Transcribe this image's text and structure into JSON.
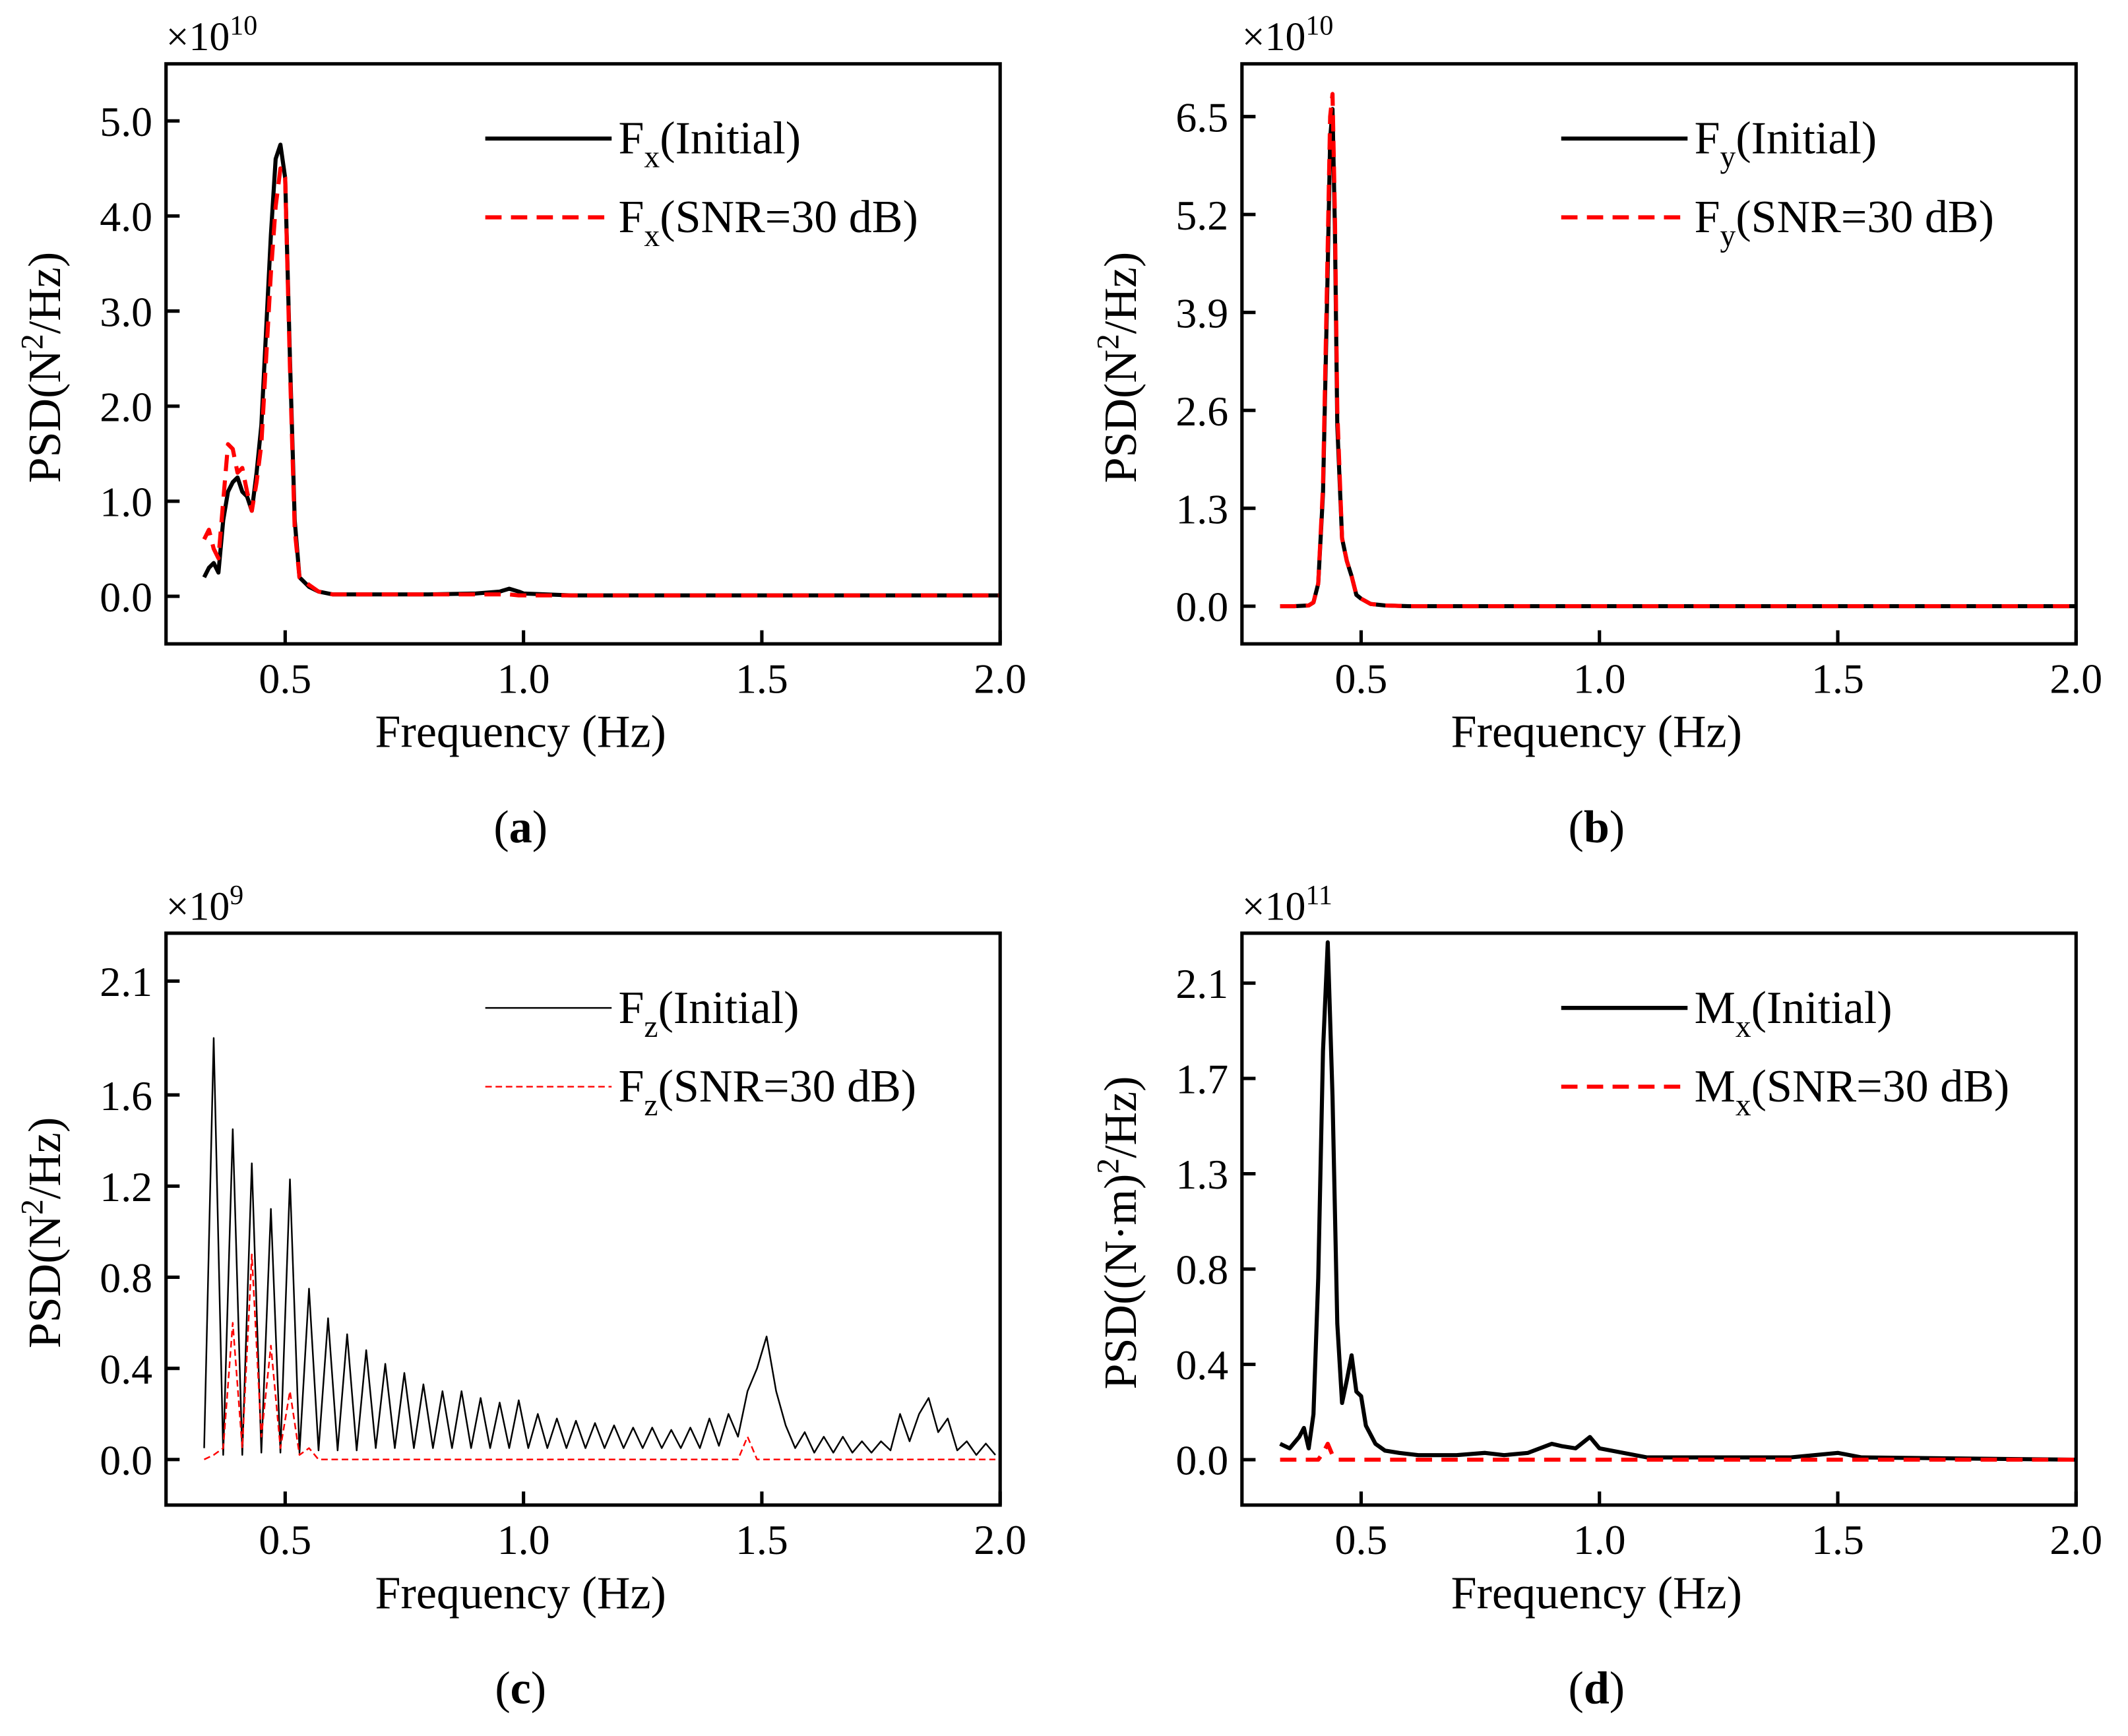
{
  "chart_data": [
    {
      "type": "line",
      "panel_label": [
        "(",
        "a",
        ")"
      ],
      "multiplier": {
        "base": "×10",
        "exp": "10"
      },
      "xlabel": "Frequency (Hz)",
      "ylabel": {
        "pre": "PSD(N",
        "sup": "2",
        "post": "/Hz)"
      },
      "xlim": [
        0.25,
        2.0
      ],
      "xticks": [
        0.5,
        {
          "value": 1,
          "label": "1.0"
        },
        1.5,
        {
          "value": 2,
          "label": "2.0"
        }
      ],
      "ylim": [
        -0.5,
        5.6
      ],
      "yticks": [
        {
          "value": 0,
          "label": "0.0"
        },
        {
          "value": 1,
          "label": "1.0"
        },
        {
          "value": 2,
          "label": "2.0"
        },
        {
          "value": 3,
          "label": "3.0"
        },
        {
          "value": 4,
          "label": "4.0"
        },
        {
          "value": 5,
          "label": "5.0"
        }
      ],
      "x": [
        0.33,
        0.34,
        0.35,
        0.36,
        0.37,
        0.38,
        0.39,
        0.4,
        0.41,
        0.42,
        0.43,
        0.44,
        0.45,
        0.46,
        0.47,
        0.48,
        0.49,
        0.5,
        0.51,
        0.52,
        0.53,
        0.55,
        0.57,
        0.6,
        0.7,
        0.8,
        0.9,
        0.95,
        0.97,
        0.99,
        1.0,
        1.1,
        1.5,
        2.0
      ],
      "series": [
        {
          "name": {
            "base": "F",
            "sub": "x",
            "rest": "(Initial)"
          },
          "color": "#000000",
          "dashed": false,
          "linewidth": 3,
          "values": [
            0.2,
            0.3,
            0.35,
            0.25,
            0.8,
            1.1,
            1.2,
            1.25,
            1.1,
            1.05,
            0.9,
            1.3,
            1.8,
            2.8,
            3.8,
            4.6,
            4.75,
            4.4,
            2.5,
            0.8,
            0.2,
            0.1,
            0.05,
            0.02,
            0.02,
            0.02,
            0.03,
            0.05,
            0.08,
            0.05,
            0.03,
            0.01,
            0.01,
            0.01
          ]
        },
        {
          "name": {
            "base": "F",
            "sub": "x",
            "rest": "(SNR=30 dB)"
          },
          "color": "#ff0000",
          "dashed": true,
          "linewidth": 3,
          "values": [
            0.6,
            0.7,
            0.5,
            0.4,
            1.0,
            1.6,
            1.55,
            1.3,
            1.35,
            1.1,
            0.9,
            1.2,
            1.6,
            2.5,
            3.4,
            4.1,
            4.5,
            4.4,
            2.4,
            0.7,
            0.2,
            0.12,
            0.05,
            0.02,
            0.02,
            0.02,
            0.02,
            0.02,
            0.02,
            0.01,
            0.01,
            0.01,
            0.01,
            0.01
          ]
        }
      ]
    },
    {
      "type": "line",
      "panel_label": [
        "(",
        "b",
        ")"
      ],
      "multiplier": {
        "base": "×10",
        "exp": "10"
      },
      "xlabel": "Frequency (Hz)",
      "ylabel": {
        "pre": "PSD(N",
        "sup": "2",
        "post": "/Hz)"
      },
      "xlim": [
        0.25,
        2.0
      ],
      "xticks": [
        0.5,
        {
          "value": 1,
          "label": "1.0"
        },
        1.5,
        {
          "value": 2,
          "label": "2.0"
        }
      ],
      "ylim": [
        -0.5,
        7.2
      ],
      "yticks": [
        {
          "value": 0,
          "label": "0.0"
        },
        1.3,
        2.6,
        3.9,
        5.2,
        6.5
      ],
      "x": [
        0.33,
        0.36,
        0.39,
        0.4,
        0.41,
        0.42,
        0.43,
        0.435,
        0.44,
        0.445,
        0.45,
        0.46,
        0.47,
        0.48,
        0.49,
        0.5,
        0.52,
        0.55,
        0.6,
        1.0,
        1.5,
        2.0
      ],
      "series": [
        {
          "name": {
            "base": "F",
            "sub": "y",
            "rest": "(Initial)"
          },
          "color": "#000000",
          "dashed": false,
          "linewidth": 3,
          "values": [
            0,
            0,
            0.01,
            0.05,
            0.3,
            1.5,
            4.5,
            6.2,
            6.6,
            5.0,
            2.4,
            0.9,
            0.6,
            0.4,
            0.15,
            0.1,
            0.03,
            0.01,
            0,
            0,
            0,
            0
          ]
        },
        {
          "name": {
            "base": "F",
            "sub": "y",
            "rest": "(SNR=30 dB)"
          },
          "color": "#ff0000",
          "dashed": true,
          "linewidth": 3,
          "values": [
            0,
            0,
            0.01,
            0.05,
            0.3,
            1.6,
            4.8,
            6.5,
            6.8,
            5.2,
            2.6,
            0.9,
            0.6,
            0.4,
            0.15,
            0.1,
            0.03,
            0.01,
            0,
            0,
            0,
            0
          ]
        }
      ]
    },
    {
      "type": "line",
      "panel_label": [
        "(",
        "c",
        ")"
      ],
      "multiplier": {
        "base": "×10",
        "exp": "9"
      },
      "xlabel": "Frequency (Hz)",
      "ylabel": {
        "pre": "PSD(N",
        "sup": "2",
        "post": "/Hz)"
      },
      "xlim": [
        0.25,
        2.0
      ],
      "xticks": [
        0.5,
        {
          "value": 1,
          "label": "1.0"
        },
        1.5,
        {
          "value": 2,
          "label": "2.0"
        }
      ],
      "ylim": [
        -0.2,
        2.31
      ],
      "yticks": [
        {
          "value": 0,
          "label": "0.0"
        },
        0.4,
        0.8,
        1.2,
        1.6,
        2.1
      ],
      "x": [
        0.33,
        0.35,
        0.37,
        0.39,
        0.41,
        0.43,
        0.45,
        0.47,
        0.49,
        0.51,
        0.53,
        0.55,
        0.57,
        0.59,
        0.61,
        0.63,
        0.65,
        0.67,
        0.69,
        0.71,
        0.73,
        0.75,
        0.77,
        0.79,
        0.81,
        0.83,
        0.85,
        0.87,
        0.89,
        0.91,
        0.93,
        0.95,
        0.97,
        0.99,
        1.01,
        1.03,
        1.05,
        1.07,
        1.09,
        1.11,
        1.13,
        1.15,
        1.17,
        1.19,
        1.21,
        1.23,
        1.25,
        1.27,
        1.29,
        1.31,
        1.33,
        1.35,
        1.37,
        1.39,
        1.41,
        1.43,
        1.45,
        1.47,
        1.49,
        1.51,
        1.53,
        1.55,
        1.57,
        1.59,
        1.61,
        1.63,
        1.65,
        1.67,
        1.69,
        1.71,
        1.73,
        1.75,
        1.77,
        1.79,
        1.81,
        1.83,
        1.85,
        1.87,
        1.89,
        1.91,
        1.93,
        1.95,
        1.97,
        1.99
      ],
      "series": [
        {
          "name": {
            "base": "F",
            "sub": "z",
            "rest": "(Initial)"
          },
          "color": "#000000",
          "dashed": false,
          "linewidth": 1.2,
          "values": [
            0.05,
            1.85,
            0.02,
            1.45,
            0.02,
            1.3,
            0.03,
            1.1,
            0.03,
            1.23,
            0.03,
            0.75,
            0.04,
            0.62,
            0.04,
            0.55,
            0.04,
            0.48,
            0.05,
            0.42,
            0.05,
            0.38,
            0.05,
            0.33,
            0.05,
            0.3,
            0.05,
            0.3,
            0.05,
            0.27,
            0.05,
            0.25,
            0.05,
            0.26,
            0.05,
            0.2,
            0.05,
            0.18,
            0.05,
            0.17,
            0.05,
            0.16,
            0.05,
            0.15,
            0.05,
            0.14,
            0.05,
            0.14,
            0.05,
            0.13,
            0.05,
            0.14,
            0.05,
            0.18,
            0.06,
            0.2,
            0.1,
            0.3,
            0.4,
            0.54,
            0.3,
            0.15,
            0.05,
            0.12,
            0.03,
            0.1,
            0.03,
            0.1,
            0.03,
            0.08,
            0.03,
            0.08,
            0.04,
            0.2,
            0.08,
            0.2,
            0.27,
            0.12,
            0.18,
            0.04,
            0.08,
            0.02,
            0.07,
            0.02
          ]
        },
        {
          "name": {
            "base": "F",
            "sub": "z",
            "rest": "(SNR=30 dB)"
          },
          "color": "#ff0000",
          "dashed": true,
          "linewidth": 1.2,
          "values": [
            0,
            0.02,
            0.05,
            0.6,
            0.05,
            0.9,
            0.1,
            0.5,
            0.05,
            0.3,
            0.02,
            0.05,
            0,
            0,
            0,
            0,
            0,
            0,
            0,
            0,
            0,
            0,
            0,
            0,
            0,
            0,
            0,
            0,
            0,
            0,
            0,
            0,
            0,
            0,
            0,
            0,
            0,
            0,
            0,
            0,
            0,
            0,
            0,
            0,
            0,
            0,
            0,
            0,
            0,
            0,
            0,
            0,
            0,
            0,
            0,
            0,
            0,
            0.1,
            0,
            0,
            0,
            0,
            0,
            0,
            0,
            0,
            0,
            0,
            0,
            0,
            0,
            0,
            0,
            0,
            0,
            0,
            0,
            0,
            0,
            0,
            0,
            0,
            0,
            0
          ]
        }
      ]
    },
    {
      "type": "line",
      "panel_label": [
        "(",
        "d",
        ")"
      ],
      "multiplier": {
        "base": "×10",
        "exp": "11"
      },
      "xlabel": "Frequency (Hz)",
      "ylabel": {
        "pre": "PSD((N·m)",
        "sup": "2",
        "post": "/Hz)"
      },
      "xlim": [
        0.25,
        2.0
      ],
      "xticks": [
        0.5,
        {
          "value": 1,
          "label": "1.0"
        },
        1.5,
        {
          "value": 2,
          "label": "2.0"
        }
      ],
      "ylim": [
        -0.2,
        2.32
      ],
      "yticks": [
        {
          "value": 0,
          "label": "0.0"
        },
        {
          "value": 0.42,
          "label": "0.4"
        },
        {
          "value": 0.84,
          "label": "0.8"
        },
        {
          "value": 1.26,
          "label": "1.3"
        },
        {
          "value": 1.68,
          "label": "1.7"
        },
        2.1
      ],
      "x": [
        0.33,
        0.35,
        0.37,
        0.38,
        0.39,
        0.4,
        0.41,
        0.42,
        0.43,
        0.44,
        0.45,
        0.46,
        0.47,
        0.48,
        0.49,
        0.5,
        0.51,
        0.53,
        0.55,
        0.58,
        0.62,
        0.7,
        0.76,
        0.8,
        0.85,
        0.9,
        0.92,
        0.95,
        0.98,
        1.0,
        1.05,
        1.1,
        1.2,
        1.4,
        1.5,
        1.55,
        2.0
      ],
      "series": [
        {
          "name": {
            "base": "M",
            "sub": "x",
            "rest": "(Initial)"
          },
          "color": "#000000",
          "dashed": false,
          "linewidth": 3,
          "values": [
            0.07,
            0.05,
            0.1,
            0.14,
            0.05,
            0.2,
            0.8,
            1.8,
            2.28,
            1.6,
            0.6,
            0.25,
            0.35,
            0.46,
            0.3,
            0.28,
            0.15,
            0.07,
            0.04,
            0.03,
            0.02,
            0.02,
            0.03,
            0.02,
            0.03,
            0.07,
            0.06,
            0.05,
            0.1,
            0.05,
            0.03,
            0.01,
            0.01,
            0.01,
            0.03,
            0.01,
            0
          ]
        },
        {
          "name": {
            "base": "M",
            "sub": "x",
            "rest": "(SNR=30 dB)"
          },
          "color": "#ff0000",
          "dashed": true,
          "linewidth": 3,
          "values": [
            0,
            0,
            0,
            0,
            0,
            0,
            0,
            0.03,
            0.07,
            0.02,
            0,
            0,
            0,
            0,
            0,
            0,
            0,
            0,
            0,
            0,
            0,
            0,
            0,
            0,
            0,
            0,
            0,
            0,
            0,
            0,
            0,
            0,
            0,
            0,
            0,
            0,
            0
          ]
        }
      ]
    }
  ]
}
